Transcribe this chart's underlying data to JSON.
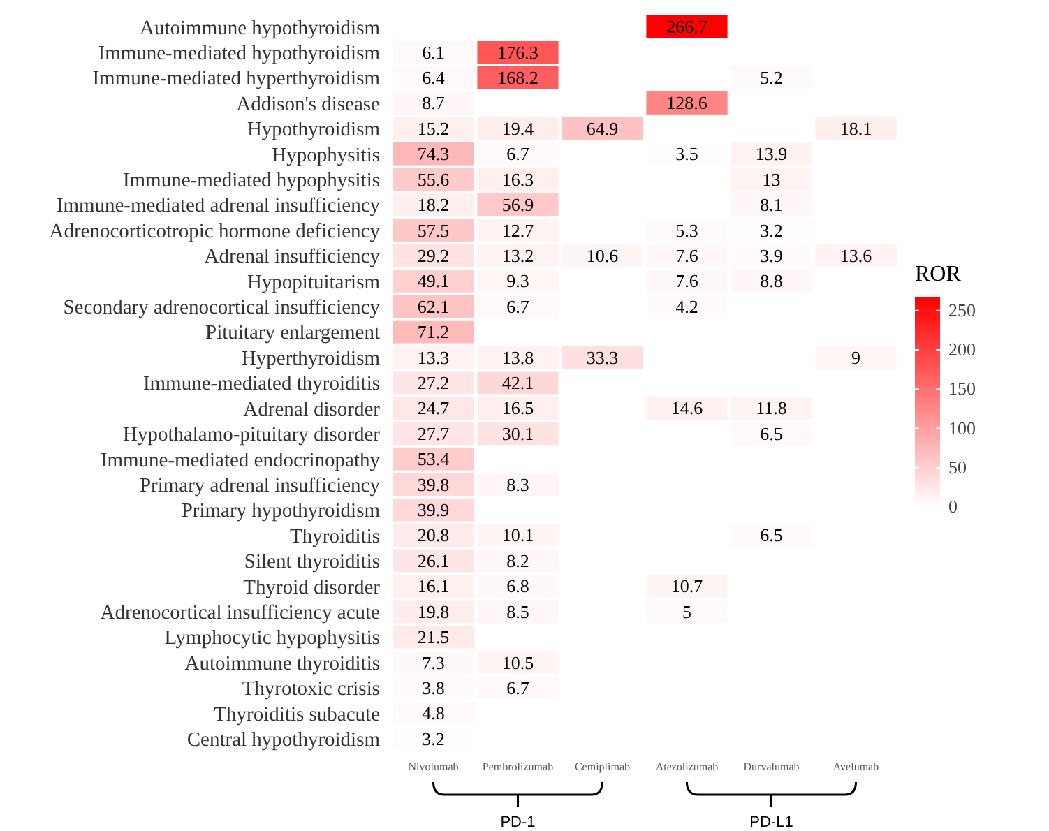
{
  "chart_data": {
    "type": "heatmap",
    "categories": [
      "Nivolumab",
      "Pembrolizumab",
      "Cemiplimab",
      "Atezolizumab",
      "Durvalumab",
      "Avelumab"
    ],
    "y_categories": [
      "Autoimmune hypothyroidism",
      "Immune-mediated hypothyroidism",
      "Immune-mediated hyperthyroidism",
      "Addison's disease",
      "Hypothyroidism",
      "Hypophysitis",
      "Immune-mediated hypophysitis",
      "Immune-mediated adrenal insufficiency",
      "Adrenocorticotropic hormone deficiency",
      "Adrenal insufficiency",
      "Hypopituitarism",
      "Secondary adrenocortical insufficiency",
      "Pituitary enlargement",
      "Hyperthyroidism",
      "Immune-mediated thyroiditis",
      "Adrenal disorder",
      "Hypothalamo-pituitary disorder",
      "Immune-mediated endocrinopathy",
      "Primary adrenal insufficiency",
      "Primary hypothyroidism",
      "Thyroiditis",
      "Silent thyroiditis",
      "Thyroid disorder",
      "Adrenocortical insufficiency acute",
      "Lymphocytic hypophysitis",
      "Autoimmune thyroiditis",
      "Thyrotoxic crisis",
      "Thyroiditis subacute",
      "Central hypothyroidism"
    ],
    "cells": [
      [
        null,
        null,
        null,
        266.7,
        null,
        null
      ],
      [
        6.1,
        176.3,
        null,
        null,
        null,
        null
      ],
      [
        6.4,
        168.2,
        null,
        null,
        5.2,
        null
      ],
      [
        8.7,
        null,
        null,
        128.6,
        null,
        null
      ],
      [
        15.2,
        19.4,
        64.9,
        null,
        null,
        18.1
      ],
      [
        74.3,
        6.7,
        null,
        3.5,
        13.9,
        null
      ],
      [
        55.6,
        16.3,
        null,
        null,
        13,
        null
      ],
      [
        18.2,
        56.9,
        null,
        null,
        8.1,
        null
      ],
      [
        57.5,
        12.7,
        null,
        5.3,
        3.2,
        null
      ],
      [
        29.2,
        13.2,
        10.6,
        7.6,
        3.9,
        13.6
      ],
      [
        49.1,
        9.3,
        null,
        7.6,
        8.8,
        null
      ],
      [
        62.1,
        6.7,
        null,
        4.2,
        null,
        null
      ],
      [
        71.2,
        null,
        null,
        null,
        null,
        null
      ],
      [
        13.3,
        13.8,
        33.3,
        null,
        null,
        9
      ],
      [
        27.2,
        42.1,
        null,
        null,
        null,
        null
      ],
      [
        24.7,
        16.5,
        null,
        14.6,
        11.8,
        null
      ],
      [
        27.7,
        30.1,
        null,
        null,
        6.5,
        null
      ],
      [
        53.4,
        null,
        null,
        null,
        null,
        null
      ],
      [
        39.8,
        8.3,
        null,
        null,
        null,
        null
      ],
      [
        39.9,
        null,
        null,
        null,
        null,
        null
      ],
      [
        20.8,
        10.1,
        null,
        null,
        6.5,
        null
      ],
      [
        26.1,
        8.2,
        null,
        null,
        null,
        null
      ],
      [
        16.1,
        6.8,
        null,
        10.7,
        null,
        null
      ],
      [
        19.8,
        8.5,
        null,
        5,
        null,
        null
      ],
      [
        21.5,
        null,
        null,
        null,
        null,
        null
      ],
      [
        7.3,
        10.5,
        null,
        null,
        null,
        null
      ],
      [
        3.8,
        6.7,
        null,
        null,
        null,
        null
      ],
      [
        4.8,
        null,
        null,
        null,
        null,
        null
      ],
      [
        3.2,
        null,
        null,
        null,
        null,
        null
      ]
    ],
    "data_labels": true,
    "clabel": "ROR",
    "clim": [
      0,
      266.7
    ],
    "cticks": [
      0,
      50,
      100,
      150,
      200,
      250
    ],
    "colors": [
      "#ffffff",
      "#ff0000"
    ],
    "annotations": [
      "PD-1",
      "PD-L1"
    ]
  }
}
